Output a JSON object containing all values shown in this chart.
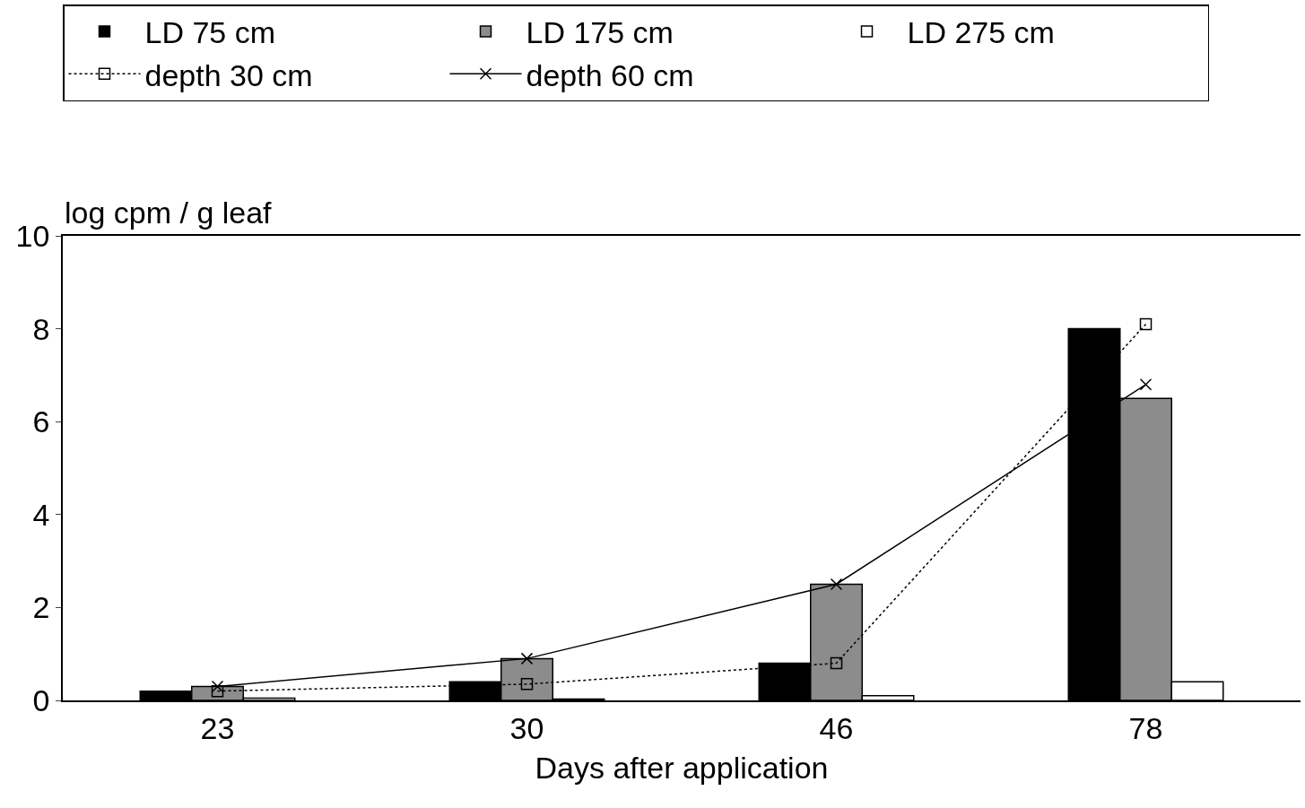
{
  "chart_data": {
    "type": "bar",
    "xlabel": "Days after application",
    "ylabel": "log cpm / g leaf",
    "categories": [
      "23",
      "30",
      "46",
      "78"
    ],
    "series": [
      {
        "name": "LD 75 cm",
        "color": "#000000",
        "values": [
          0.2,
          0.4,
          0.8,
          8.0
        ]
      },
      {
        "name": "LD 175 cm",
        "color": "#8c8c8c",
        "values": [
          0.3,
          0.9,
          2.5,
          6.5
        ]
      },
      {
        "name": "LD 275 cm",
        "color": "#ffffff",
        "values": [
          0.05,
          0.03,
          0.1,
          0.4
        ]
      },
      {
        "name": "depth 30 cm",
        "type": "line",
        "color": "#000000",
        "marker": "square",
        "line_style": "dotted",
        "values": [
          0.2,
          0.35,
          0.8,
          8.1
        ]
      },
      {
        "name": "depth 60 cm",
        "type": "line",
        "color": "#000000",
        "marker": "cross",
        "line_style": "solid",
        "values": [
          0.3,
          0.9,
          2.5,
          6.8
        ]
      }
    ],
    "ylim": [
      0,
      10
    ],
    "yticks": [
      0,
      2,
      4,
      6,
      8,
      10
    ],
    "legend": "top"
  }
}
